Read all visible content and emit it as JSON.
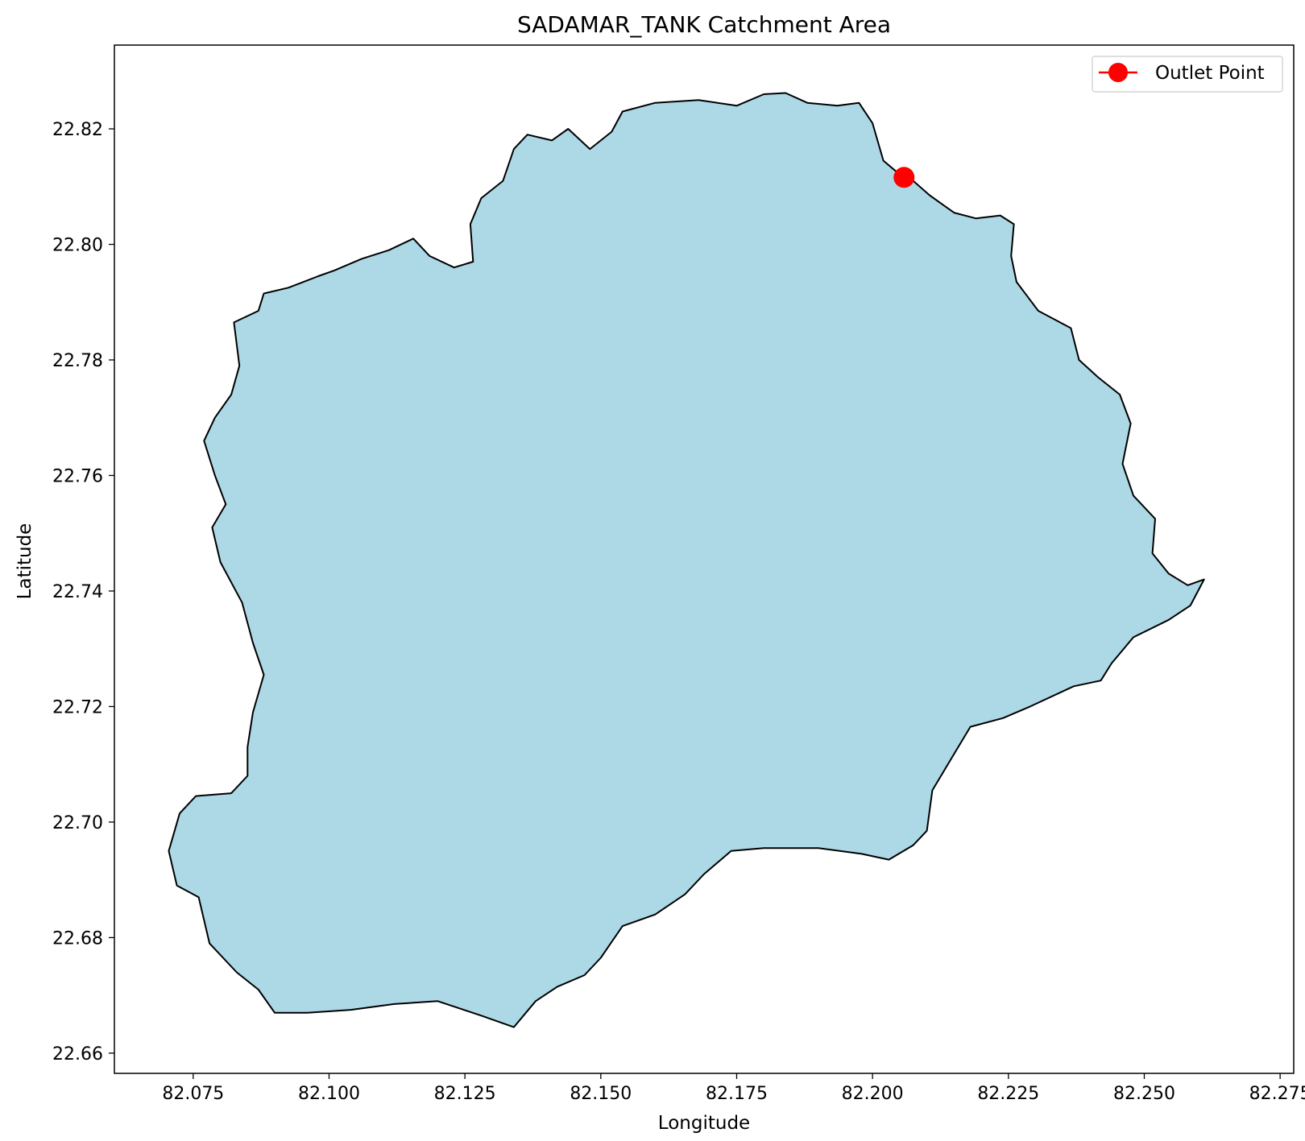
{
  "chart_data": {
    "type": "map",
    "title": "SADAMAR_TANK Catchment Area",
    "xlabel": "Longitude",
    "ylabel": "Latitude",
    "xlim": [
      82.0605,
      82.2775
    ],
    "ylim": [
      22.6565,
      22.8345
    ],
    "x_ticks": [
      "82.075",
      "82.100",
      "82.125",
      "82.150",
      "82.175",
      "82.200",
      "82.225",
      "82.250",
      "82.275"
    ],
    "y_ticks": [
      "22.66",
      "22.68",
      "22.70",
      "22.72",
      "22.74",
      "22.76",
      "22.78",
      "22.80",
      "22.82"
    ],
    "grid": false,
    "legend": {
      "position": "top-right",
      "entries": [
        {
          "label": "Outlet Point",
          "color": "#ff0000",
          "marker": "circle"
        }
      ]
    },
    "catchment": {
      "fill": "#add8e6",
      "edge": "#000000",
      "boundary": [
        [
          82.1975,
          22.8245
        ],
        [
          82.2,
          22.821
        ],
        [
          82.202,
          22.8145
        ],
        [
          82.2045,
          22.8125
        ],
        [
          82.2075,
          22.811
        ],
        [
          82.2105,
          22.8085
        ],
        [
          82.215,
          22.8055
        ],
        [
          82.219,
          22.8045
        ],
        [
          82.2235,
          22.805
        ],
        [
          82.226,
          22.8035
        ],
        [
          82.2255,
          22.798
        ],
        [
          82.2265,
          22.7935
        ],
        [
          82.2305,
          22.7885
        ],
        [
          82.2365,
          22.7855
        ],
        [
          82.238,
          22.78
        ],
        [
          82.2415,
          22.777
        ],
        [
          82.2455,
          22.774
        ],
        [
          82.2475,
          22.769
        ],
        [
          82.246,
          22.762
        ],
        [
          82.248,
          22.7565
        ],
        [
          82.252,
          22.7525
        ],
        [
          82.2515,
          22.7465
        ],
        [
          82.2545,
          22.743
        ],
        [
          82.258,
          22.741
        ],
        [
          82.261,
          22.742
        ],
        [
          82.2585,
          22.7375
        ],
        [
          82.2545,
          22.735
        ],
        [
          82.248,
          22.732
        ],
        [
          82.244,
          22.7275
        ],
        [
          82.242,
          22.7245
        ],
        [
          82.237,
          22.7235
        ],
        [
          82.229,
          22.72
        ],
        [
          82.224,
          22.718
        ],
        [
          82.218,
          22.7165
        ],
        [
          82.2145,
          22.711
        ],
        [
          82.211,
          22.7055
        ],
        [
          82.21,
          22.6985
        ],
        [
          82.2075,
          22.696
        ],
        [
          82.203,
          22.6935
        ],
        [
          82.198,
          22.6945
        ],
        [
          82.19,
          22.6955
        ],
        [
          82.18,
          22.6955
        ],
        [
          82.174,
          22.695
        ],
        [
          82.169,
          22.691
        ],
        [
          82.1655,
          22.6875
        ],
        [
          82.16,
          22.684
        ],
        [
          82.154,
          22.682
        ],
        [
          82.15,
          22.6765
        ],
        [
          82.147,
          22.6735
        ],
        [
          82.142,
          22.6715
        ],
        [
          82.138,
          22.669
        ],
        [
          82.134,
          22.6645
        ],
        [
          82.128,
          22.6665
        ],
        [
          82.12,
          22.669
        ],
        [
          82.112,
          22.6685
        ],
        [
          82.104,
          22.6675
        ],
        [
          82.096,
          22.667
        ],
        [
          82.09,
          22.667
        ],
        [
          82.087,
          22.671
        ],
        [
          82.083,
          22.674
        ],
        [
          82.078,
          22.679
        ],
        [
          82.076,
          22.687
        ],
        [
          82.072,
          22.689
        ],
        [
          82.0705,
          22.695
        ],
        [
          82.0725,
          22.7015
        ],
        [
          82.0755,
          22.7045
        ],
        [
          82.082,
          22.705
        ],
        [
          82.085,
          22.708
        ],
        [
          82.085,
          22.713
        ],
        [
          82.086,
          22.719
        ],
        [
          82.088,
          22.7255
        ],
        [
          82.086,
          22.731
        ],
        [
          82.084,
          22.738
        ],
        [
          82.08,
          22.745
        ],
        [
          82.0785,
          22.751
        ],
        [
          82.081,
          22.755
        ],
        [
          82.079,
          22.76
        ],
        [
          82.077,
          22.766
        ],
        [
          82.079,
          22.77
        ],
        [
          82.082,
          22.774
        ],
        [
          82.0835,
          22.779
        ],
        [
          82.0825,
          22.7865
        ],
        [
          82.087,
          22.7885
        ],
        [
          82.088,
          22.7915
        ],
        [
          82.0925,
          22.7925
        ],
        [
          82.098,
          22.7945
        ],
        [
          82.101,
          22.7955
        ],
        [
          82.106,
          22.7975
        ],
        [
          82.111,
          22.799
        ],
        [
          82.1155,
          22.801
        ],
        [
          82.1185,
          22.798
        ],
        [
          82.123,
          22.796
        ],
        [
          82.1265,
          22.797
        ],
        [
          82.126,
          22.8035
        ],
        [
          82.128,
          22.808
        ],
        [
          82.132,
          22.811
        ],
        [
          82.134,
          22.8165
        ],
        [
          82.1365,
          22.819
        ],
        [
          82.141,
          22.818
        ],
        [
          82.144,
          22.82
        ],
        [
          82.148,
          22.8165
        ],
        [
          82.152,
          22.8195
        ],
        [
          82.154,
          22.823
        ],
        [
          82.16,
          22.8245
        ],
        [
          82.168,
          22.825
        ],
        [
          82.175,
          22.824
        ],
        [
          82.18,
          22.826
        ],
        [
          82.184,
          22.8262
        ],
        [
          82.188,
          22.8245
        ],
        [
          82.1935,
          22.824
        ]
      ]
    },
    "outlet": {
      "label": "Outlet Point",
      "lon": 82.2058,
      "lat": 22.8116,
      "color": "#ff0000"
    }
  }
}
